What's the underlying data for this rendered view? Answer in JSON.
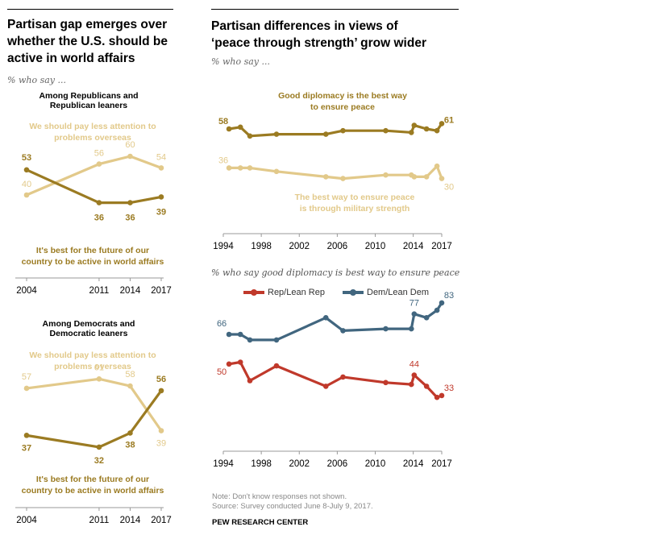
{
  "colors": {
    "light_gold": "#e2c98a",
    "dark_gold": "#9b7b22",
    "rep_red": "#c0392b",
    "dem_blue": "#41667f"
  },
  "left": {
    "title": "Partisan gap emerges over whether the U.S. should be active in world affairs",
    "title_lines": [
      "Partisan gap emerges over",
      "whether the U.S. should be",
      "active in world affairs"
    ],
    "subtitle": "% who say ...",
    "less_attention_label_lines": [
      "We should pay less attention to",
      "problems overseas"
    ],
    "active_label_lines": [
      "It's best for the future of our",
      "country to be active in world affairs"
    ]
  },
  "right": {
    "title_lines": [
      "Partisan differences in views of",
      "‘peace through strength’ grow wider"
    ],
    "subtitle": "% who say ...",
    "diplomacy_label_lines": [
      "Good diplomacy is the best way",
      "to ensure peace"
    ],
    "military_label_lines": [
      "The best way to ensure peace",
      "is through military strength"
    ],
    "subtitle2": "% who say good diplomacy is best way to ensure peace",
    "legend": [
      {
        "label": "Rep/Lean Rep",
        "color": "#c0392b"
      },
      {
        "label": "Dem/Lean Dem",
        "color": "#41667f"
      }
    ]
  },
  "footer": {
    "note": "Note: Don't know responses not shown.",
    "source": "Source: Survey conducted June 8-July 9, 2017.",
    "brand": "PEW RESEARCH CENTER"
  },
  "chart_data": [
    {
      "id": "rep-world-affairs",
      "type": "line",
      "title": "Among Republicans and Republican leaners",
      "title_lines": [
        "Among Republicans and",
        "Republican leaners"
      ],
      "x": [
        2004,
        2011,
        2014,
        2017
      ],
      "x_ticks": [
        "2004",
        "2011",
        "2014",
        "2017"
      ],
      "ylim": [
        20,
        70
      ],
      "series": [
        {
          "name": "We should pay less attention to problems overseas",
          "values": [
            40,
            56,
            60,
            54
          ],
          "color": "#e2c98a"
        },
        {
          "name": "It's best for the future of our country to be active in world affairs",
          "values": [
            53,
            36,
            36,
            39
          ],
          "color": "#9b7b22"
        }
      ]
    },
    {
      "id": "dem-world-affairs",
      "type": "line",
      "title": "Among Democrats and Democratic leaners",
      "title_lines": [
        "Among Democrats and",
        "Democratic leaners"
      ],
      "x": [
        2004,
        2011,
        2014,
        2017
      ],
      "x_ticks": [
        "2004",
        "2011",
        "2014",
        "2017"
      ],
      "ylim": [
        20,
        70
      ],
      "series": [
        {
          "name": "We should pay less attention to problems overseas",
          "values": [
            57,
            61,
            58,
            39
          ],
          "color": "#e2c98a"
        },
        {
          "name": "It's best for the future of our country to be active in world affairs",
          "values": [
            37,
            32,
            38,
            56
          ],
          "color": "#9b7b22"
        }
      ]
    },
    {
      "id": "peace-through-strength-total",
      "type": "line",
      "title": "Partisan differences in views of 'peace through strength' grow wider",
      "x": [
        1994.6,
        1995.8,
        1996.8,
        1999.6,
        2004.8,
        2006.6,
        2011.1,
        2013.8,
        2014.1,
        2015.4,
        2016.5,
        2017.0
      ],
      "x_ticks": [
        "1994",
        "1998",
        "2002",
        "2006",
        "2010",
        "2014",
        "2017"
      ],
      "xlim": [
        1994,
        2017
      ],
      "ylim": [
        20,
        70
      ],
      "series": [
        {
          "name": "Good diplomacy is the best way to ensure peace",
          "values": [
            58,
            59,
            54,
            55,
            55,
            57,
            57,
            56,
            60,
            58,
            57,
            61
          ],
          "color": "#9b7b22",
          "labels": {
            "first": "58",
            "last": "61"
          }
        },
        {
          "name": "The best way to ensure peace is through military strength",
          "values": [
            36,
            36,
            36,
            34,
            31,
            30,
            32,
            32,
            31,
            31,
            37,
            30
          ],
          "color": "#e2c98a",
          "labels": {
            "first": "36",
            "last": "30"
          }
        }
      ]
    },
    {
      "id": "diplomacy-by-party",
      "type": "line",
      "title": "% who say good diplomacy is best way to ensure peace",
      "x": [
        1994.6,
        1995.8,
        1996.8,
        1999.6,
        2004.8,
        2006.6,
        2011.1,
        2013.8,
        2014.1,
        2015.4,
        2016.5,
        2017.0
      ],
      "x_ticks": [
        "1994",
        "1998",
        "2002",
        "2006",
        "2010",
        "2014",
        "2017"
      ],
      "xlim": [
        1994,
        2017
      ],
      "ylim": [
        20,
        90
      ],
      "series": [
        {
          "name": "Rep/Lean Rep",
          "values": [
            50,
            51,
            41,
            49,
            38,
            43,
            40,
            39,
            44,
            38,
            32,
            33
          ],
          "color": "#c0392b",
          "labels": [
            {
              "index": 0,
              "text": "50"
            },
            {
              "index": 8,
              "text": "44"
            },
            {
              "index": 11,
              "text": "33"
            }
          ]
        },
        {
          "name": "Dem/Lean Dem",
          "values": [
            66,
            66,
            63,
            63,
            75,
            68,
            69,
            69,
            77,
            75,
            79,
            83
          ],
          "color": "#41667f",
          "labels": [
            {
              "index": 0,
              "text": "66"
            },
            {
              "index": 8,
              "text": "77"
            },
            {
              "index": 11,
              "text": "83"
            }
          ]
        }
      ]
    }
  ]
}
